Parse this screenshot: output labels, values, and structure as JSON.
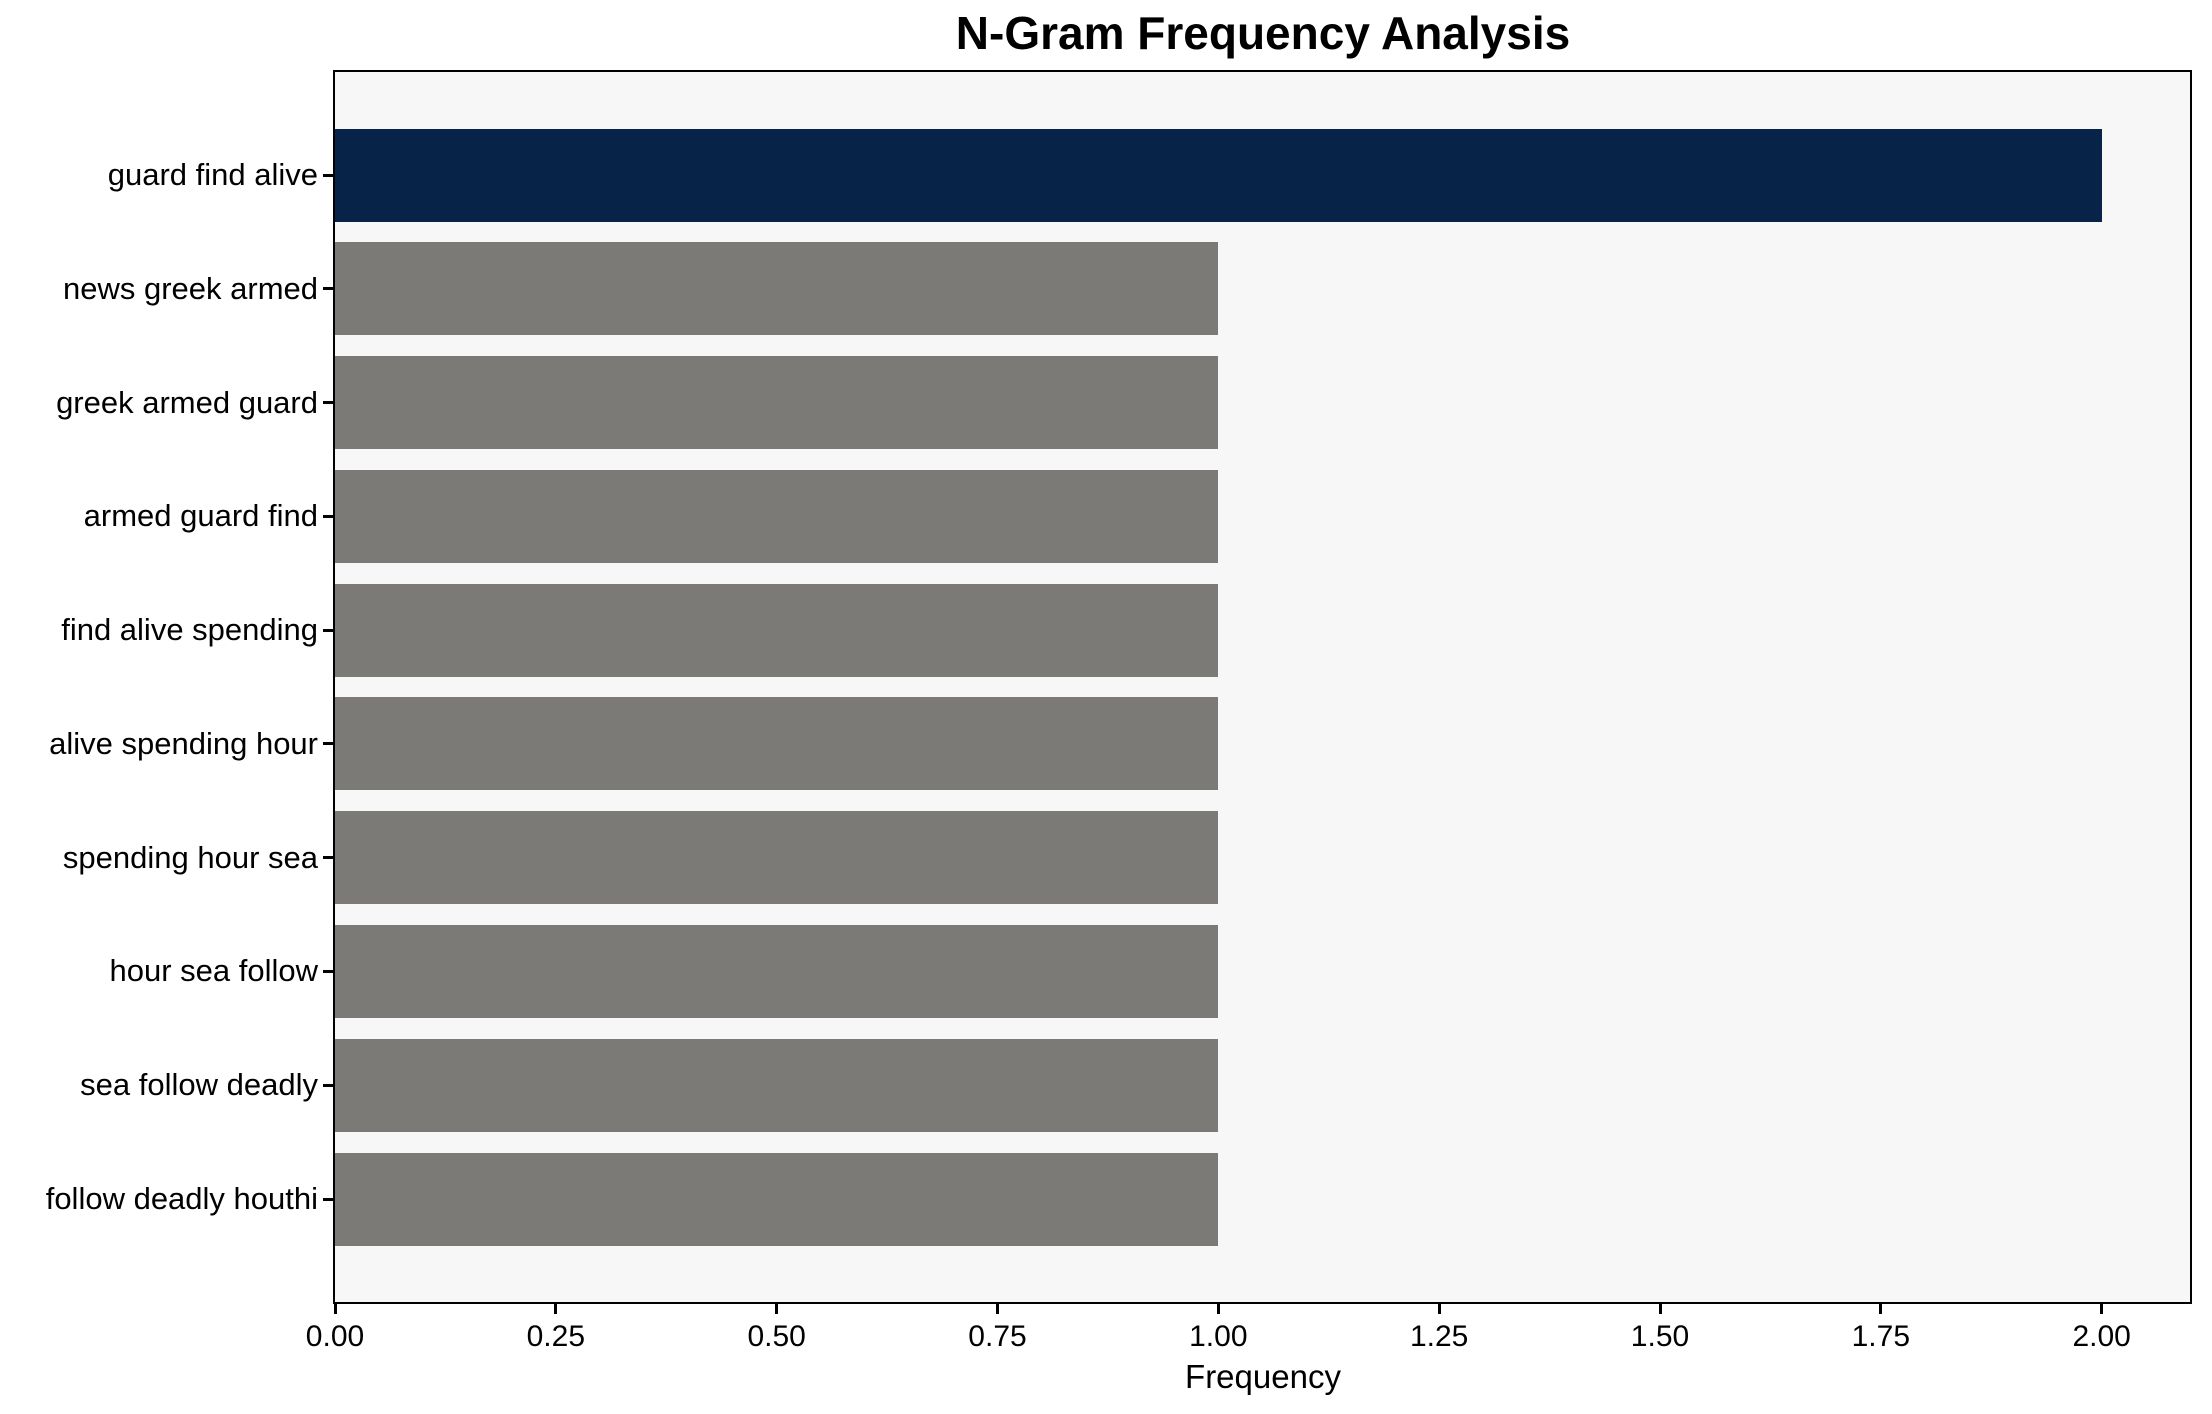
{
  "chart_data": {
    "type": "bar",
    "orientation": "horizontal",
    "title": "N-Gram Frequency Analysis",
    "xlabel": "Frequency",
    "ylabel": "",
    "categories": [
      "guard find alive",
      "news greek armed",
      "greek armed guard",
      "armed guard find",
      "find alive spending",
      "alive spending hour",
      "spending hour sea",
      "hour sea follow",
      "sea follow deadly",
      "follow deadly houthi"
    ],
    "values": [
      2,
      1,
      1,
      1,
      1,
      1,
      1,
      1,
      1,
      1
    ],
    "highlight_index": 0,
    "xlim": [
      0,
      2.1
    ],
    "xticks": [
      {
        "value": 0.0,
        "label": "0.00"
      },
      {
        "value": 0.25,
        "label": "0.25"
      },
      {
        "value": 0.5,
        "label": "0.50"
      },
      {
        "value": 0.75,
        "label": "0.75"
      },
      {
        "value": 1.0,
        "label": "1.00"
      },
      {
        "value": 1.25,
        "label": "1.25"
      },
      {
        "value": 1.5,
        "label": "1.50"
      },
      {
        "value": 1.75,
        "label": "1.75"
      },
      {
        "value": 2.0,
        "label": "2.00"
      }
    ],
    "grid": false,
    "legend": false,
    "colors": {
      "highlight_bar": "#072448",
      "default_bar": "#7b7a77",
      "plot_background": "#f7f7f7",
      "figure_background": "#ffffff",
      "axis": "#000000",
      "text": "#000000"
    }
  }
}
